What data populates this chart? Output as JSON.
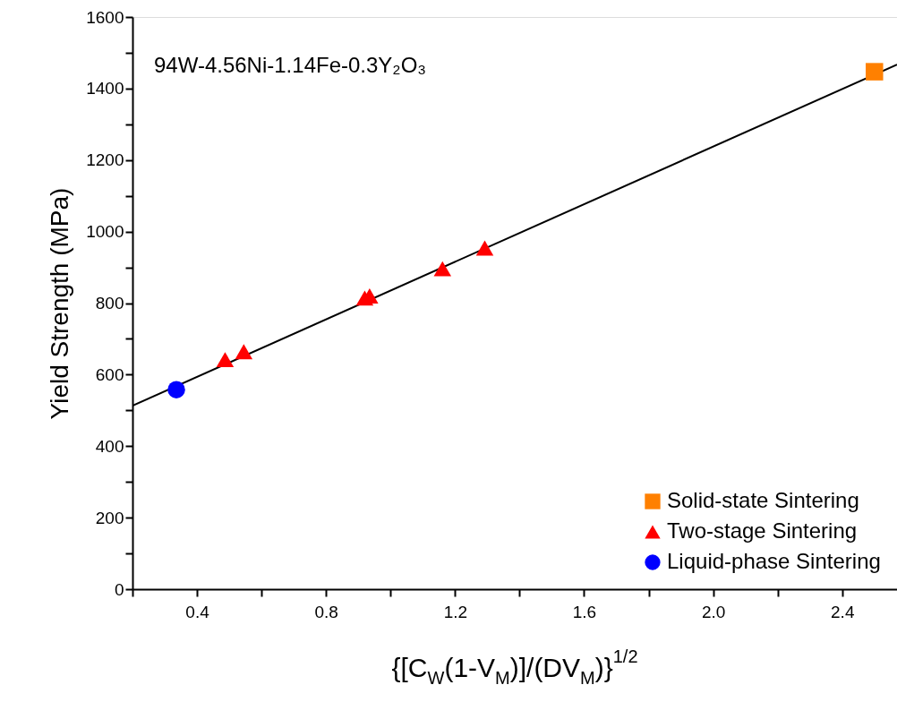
{
  "chart_data": {
    "type": "scatter",
    "xlabel": "{[C$_{W}$(1-V$_{M}$)]/(DV$_{M}$)}$^{1/2}$",
    "ylabel": "Yield Strength (MPa)",
    "annotations": [
      "94W-4.56Ni-1.14Fe-0.3Y₂O₃"
    ],
    "xlim": [
      0.2,
      2.57
    ],
    "ylim": [
      0,
      1600
    ],
    "xticks": [
      {
        "value": 0.2,
        "label": null
      },
      0.4,
      {
        "value": 0.6,
        "label": null
      },
      0.8,
      {
        "value": 1.0,
        "label": null
      },
      1.2,
      {
        "value": 1.4,
        "label": null
      },
      1.6,
      {
        "value": 1.8,
        "label": null
      },
      {
        "value": 2.0,
        "label": "2.0"
      },
      {
        "value": 2.2,
        "label": null
      },
      2.4
    ],
    "yticks": [
      0,
      {
        "value": 100,
        "label": null
      },
      200,
      {
        "value": 300,
        "label": null
      },
      400,
      {
        "value": 500,
        "label": null
      },
      600,
      {
        "value": 700,
        "label": null
      },
      800,
      {
        "value": 900,
        "label": null
      },
      1000,
      {
        "value": 1100,
        "label": null
      },
      1200,
      {
        "value": 1300,
        "label": null
      },
      1400,
      {
        "value": 1500,
        "label": null
      },
      1600
    ],
    "grid": false,
    "legend": "bottom right",
    "series": [
      {
        "name": "Solid-state Sintering",
        "marker": "square",
        "color": "#ff8000",
        "x": [
          2.5
        ],
        "values": [
          1447
        ]
      },
      {
        "name": "Two-stage Sintering",
        "marker": "triangle",
        "color": "#ff0000",
        "x": [
          0.487,
          0.545,
          0.92,
          0.935,
          1.161,
          1.292
        ],
        "values": [
          642,
          664,
          814,
          820,
          896,
          954
        ]
      },
      {
        "name": "Liquid-phase Sintering",
        "marker": "circle",
        "color": "#0000ff",
        "x": [
          0.336
        ],
        "values": [
          558
        ]
      },
      {
        "type": "line",
        "color": "#000000",
        "x": [
          0.2,
          2.57
        ],
        "values": [
          513,
          1467
        ]
      }
    ]
  }
}
